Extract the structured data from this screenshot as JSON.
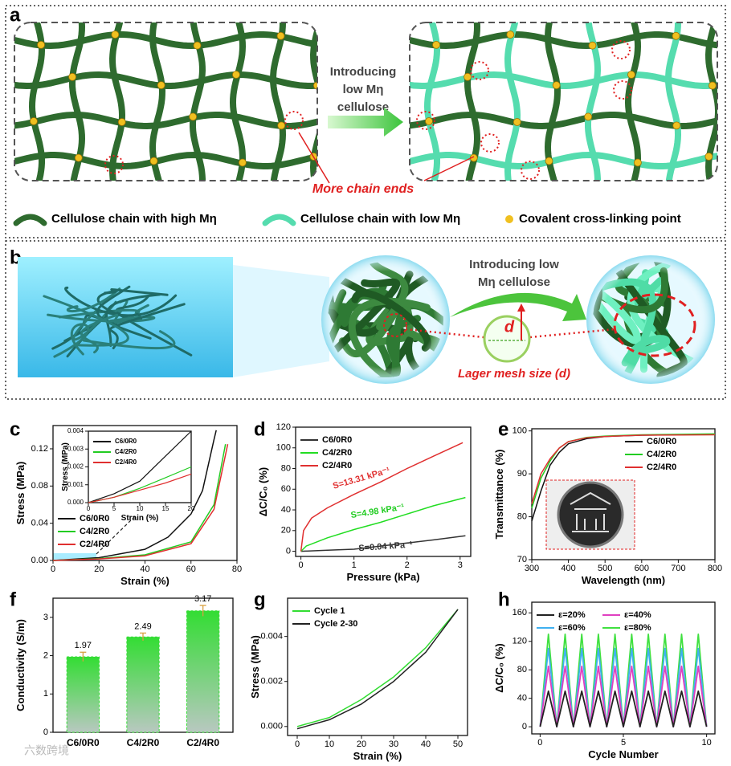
{
  "figure": {
    "panel_labels": [
      "a",
      "b",
      "c",
      "d",
      "e",
      "f",
      "g",
      "h"
    ],
    "watermark": "六数跨境",
    "a": {
      "arrow_text": [
        "Introducing",
        "low Mη",
        "cellulose"
      ],
      "callout": "More chain ends",
      "legend": [
        "Cellulose chain with high Mη",
        "Cellulose chain with low Mη",
        "Covalent cross-linking point"
      ]
    },
    "b": {
      "arrow_text": [
        "Introducing low",
        "Mη cellulose"
      ],
      "d_label": "d",
      "caption": "Lager mesh size (d)"
    }
  },
  "chart_data": [
    {
      "type": "line",
      "xlabel": "Strain (%)",
      "ylabel": "Stress (MPa)",
      "xlim": [
        0,
        80
      ],
      "xticks": [
        0,
        20,
        40,
        60,
        80
      ],
      "ylim": [
        0,
        0.145
      ],
      "yticks": [
        {
          "value": 0,
          "label": "0.00"
        },
        0.04,
        0.08,
        0.12
      ],
      "legend": "lower left",
      "series": [
        {
          "name": "C6/0R0",
          "color": "#111111",
          "x": [
            0,
            20,
            40,
            50,
            60,
            65,
            70,
            71
          ],
          "values": [
            0,
            0.003,
            0.012,
            0.025,
            0.05,
            0.075,
            0.13,
            0.14
          ]
        },
        {
          "name": "C4/2R0",
          "color": "#22cc22",
          "x": [
            0,
            20,
            40,
            60,
            70,
            75
          ],
          "values": [
            0,
            0.002,
            0.006,
            0.02,
            0.06,
            0.125
          ]
        },
        {
          "name": "C2/4R0",
          "color": "#e03030",
          "x": [
            0,
            20,
            40,
            60,
            70,
            76
          ],
          "values": [
            0,
            0.0016,
            0.005,
            0.018,
            0.055,
            0.125
          ]
        }
      ],
      "inset": {
        "xlabel": "Strain (%)",
        "ylabel": "Stress (MPa)",
        "xlim": [
          0,
          20
        ],
        "xticks": [
          0,
          5,
          10,
          15,
          20
        ],
        "ylim": [
          0,
          0.004
        ],
        "yticks": [
          {
            "value": 0,
            "label": "0.000"
          },
          0.001,
          0.002,
          0.003,
          0.004
        ],
        "legend": "upper left",
        "series": [
          {
            "name": "C6/0R0",
            "color": "#111111",
            "x": [
              0,
              5,
              10,
              15,
              20
            ],
            "values": [
              0,
              0.0005,
              0.0012,
              0.0026,
              0.004
            ]
          },
          {
            "name": "C4/2R0",
            "color": "#22cc22",
            "x": [
              0,
              5,
              10,
              15,
              20
            ],
            "values": [
              0,
              0.0003,
              0.0008,
              0.0014,
              0.002
            ]
          },
          {
            "name": "C2/4R0",
            "color": "#e03030",
            "x": [
              0,
              5,
              10,
              15,
              20
            ],
            "values": [
              0,
              0.0003,
              0.0007,
              0.0011,
              0.0016
            ]
          }
        ]
      }
    },
    {
      "type": "line",
      "xlabel": "Pressure (kPa)",
      "ylabel": "ΔC/C₀ (%)",
      "xlim": [
        -0.1,
        3.2
      ],
      "xticks": [
        0,
        1,
        2,
        3
      ],
      "ylim": [
        -5,
        120
      ],
      "yticks": [
        0,
        20,
        40,
        60,
        80,
        100,
        120
      ],
      "legend": "upper left",
      "series": [
        {
          "name": "C6/0R0",
          "color": "#333333",
          "x": [
            0,
            0.5,
            1,
            1.5,
            2,
            2.5,
            3.1
          ],
          "values": [
            0,
            1,
            2,
            5,
            8,
            11,
            15
          ]
        },
        {
          "name": "C4/2R0",
          "color": "#22dd22",
          "x": [
            0,
            0.1,
            0.5,
            1,
            1.5,
            2,
            2.5,
            3.1
          ],
          "values": [
            0,
            5,
            13,
            21,
            28,
            36,
            44,
            52
          ]
        },
        {
          "name": "C2/4R0",
          "color": "#e03030",
          "x": [
            0,
            0.05,
            0.2,
            0.5,
            1,
            1.5,
            2,
            2.5,
            3.05
          ],
          "values": [
            0,
            20,
            32,
            42,
            55,
            67,
            80,
            92,
            105
          ]
        }
      ],
      "annotations": [
        {
          "text": "S=13.31 kPa⁻¹",
          "color": "#e03030"
        },
        {
          "text": "S=4.98 kPa⁻¹",
          "color": "#22cc22"
        },
        {
          "text": "S=0.04 kPa⁻¹",
          "color": "#333333"
        }
      ]
    },
    {
      "type": "line",
      "xlabel": "Wavelength (nm)",
      "ylabel": "Transmittance (%)",
      "xlim": [
        300,
        800
      ],
      "xticks": [
        300,
        400,
        500,
        600,
        700,
        800
      ],
      "ylim": [
        70,
        100.5
      ],
      "yticks": [
        70,
        80,
        90,
        100
      ],
      "legend": "upper right",
      "series": [
        {
          "name": "C6/0R0",
          "color": "#111111",
          "x": [
            300,
            325,
            350,
            375,
            400,
            450,
            500,
            600,
            800
          ],
          "values": [
            79,
            86,
            92,
            95,
            97,
            98.2,
            98.7,
            99,
            99.2
          ]
        },
        {
          "name": "C4/2R0",
          "color": "#22cc22",
          "x": [
            300,
            325,
            350,
            375,
            400,
            450,
            500,
            600,
            800
          ],
          "values": [
            82,
            89,
            93,
            96,
            97.5,
            98.5,
            98.8,
            99.1,
            99.3
          ]
        },
        {
          "name": "C2/4R0",
          "color": "#e03030",
          "x": [
            300,
            325,
            350,
            375,
            400,
            450,
            500,
            600,
            800
          ],
          "values": [
            83,
            90,
            93.5,
            96,
            97.5,
            98.4,
            98.7,
            99,
            99.1
          ]
        }
      ]
    },
    {
      "type": "bar",
      "ylabel": "Conductivity (S/m)",
      "categories": [
        "C6/0R0",
        "C4/2R0",
        "C2/4R0"
      ],
      "values": [
        1.97,
        2.49,
        3.17
      ],
      "errors": [
        0.12,
        0.1,
        0.14
      ],
      "ylim": [
        0,
        3.5
      ],
      "yticks": [
        0,
        1,
        2,
        3
      ],
      "color": "#33dd33"
    },
    {
      "type": "line",
      "xlabel": "Strain (%)",
      "ylabel": "Stress (MPa)",
      "xlim": [
        -3,
        53
      ],
      "xticks": [
        0,
        10,
        20,
        30,
        40,
        50
      ],
      "ylim": [
        -0.0004,
        0.0057
      ],
      "yticks": [
        {
          "value": 0,
          "label": "0.000"
        },
        0.002,
        0.004
      ],
      "legend": "upper left",
      "series": [
        {
          "name": "Cycle 1",
          "color": "#33dd33",
          "x": [
            0,
            10,
            20,
            30,
            40,
            50
          ],
          "values": [
            0,
            0.0004,
            0.0012,
            0.0022,
            0.0035,
            0.0052
          ]
        },
        {
          "name": "Cycle 2-30",
          "color": "#222222",
          "x": [
            0,
            10,
            20,
            30,
            40,
            50
          ],
          "values": [
            -0.0001,
            0.0003,
            0.001,
            0.002,
            0.0033,
            0.0052
          ]
        }
      ]
    },
    {
      "type": "line",
      "xlabel": "Cycle Number",
      "ylabel": "ΔC/C₀ (%)",
      "xlim": [
        -0.5,
        10.5
      ],
      "xticks": [
        0,
        5,
        10
      ],
      "ylim": [
        -10,
        175
      ],
      "yticks": [
        0,
        40,
        80,
        120,
        160
      ],
      "legend": "upper left",
      "x": [
        0,
        0.5,
        1,
        1.5,
        2,
        2.5,
        3,
        3.5,
        4,
        4.5,
        5,
        5.5,
        6,
        6.5,
        7,
        7.5,
        8,
        8.5,
        9,
        9.5,
        10
      ],
      "series": [
        {
          "name": "ε=20%",
          "color": "#222222",
          "values": [
            0,
            50,
            0,
            50,
            0,
            50,
            0,
            50,
            0,
            50,
            0,
            50,
            0,
            50,
            0,
            50,
            0,
            50,
            0,
            50,
            0
          ]
        },
        {
          "name": "ε=40%",
          "color": "#e040c0",
          "values": [
            0,
            85,
            0,
            85,
            0,
            85,
            0,
            85,
            0,
            85,
            0,
            85,
            0,
            85,
            0,
            85,
            0,
            85,
            0,
            85,
            0
          ]
        },
        {
          "name": "ε=60%",
          "color": "#40b0f0",
          "values": [
            0,
            110,
            0,
            110,
            0,
            110,
            0,
            110,
            0,
            110,
            0,
            110,
            0,
            110,
            0,
            110,
            0,
            110,
            0,
            110,
            0
          ]
        },
        {
          "name": "ε=80%",
          "color": "#40e040",
          "values": [
            0,
            130,
            0,
            130,
            0,
            130,
            0,
            130,
            0,
            130,
            0,
            130,
            0,
            130,
            0,
            130,
            0,
            130,
            0,
            130,
            0
          ]
        }
      ]
    }
  ]
}
